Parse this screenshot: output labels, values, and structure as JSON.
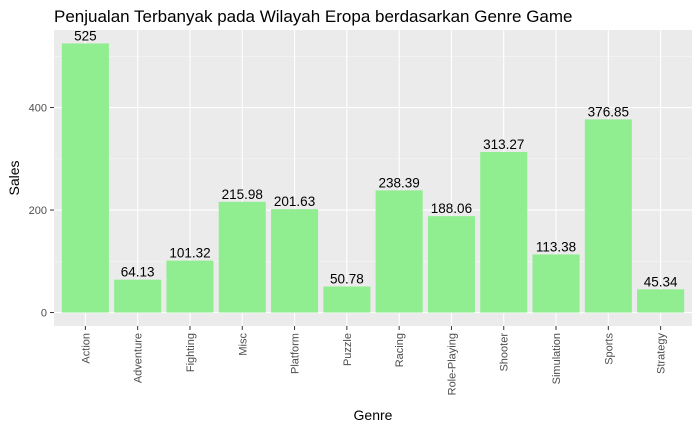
{
  "chart_data": {
    "type": "bar",
    "title": "Penjualan Terbanyak pada Wilayah Eropa berdasarkan Genre Game",
    "xlabel": "Genre",
    "ylabel": "Sales",
    "categories": [
      "Action",
      "Adventure",
      "Fighting",
      "Misc",
      "Platform",
      "Puzzle",
      "Racing",
      "Role-Playing",
      "Shooter",
      "Simulation",
      "Sports",
      "Strategy"
    ],
    "values": [
      525,
      64.13,
      101.32,
      215.98,
      201.63,
      50.78,
      238.39,
      188.06,
      313.27,
      113.38,
      376.85,
      45.34
    ],
    "data_labels": [
      "525",
      "64.13",
      "101.32",
      "215.98",
      "201.63",
      "50.78",
      "238.39",
      "188.06",
      "313.27",
      "113.38",
      "376.85",
      "45.34"
    ],
    "yticks": [
      0,
      200,
      400
    ],
    "ytick_labels": [
      "0",
      "200",
      "400"
    ],
    "ylim": [
      -26.25,
      551.25
    ],
    "grid": true,
    "legend": "none",
    "colors": {
      "bar": "#90EE90",
      "panel_background": "#EBEBEB",
      "grid_major": "#FFFFFF",
      "grid_minor": "#F5F5F5"
    }
  }
}
